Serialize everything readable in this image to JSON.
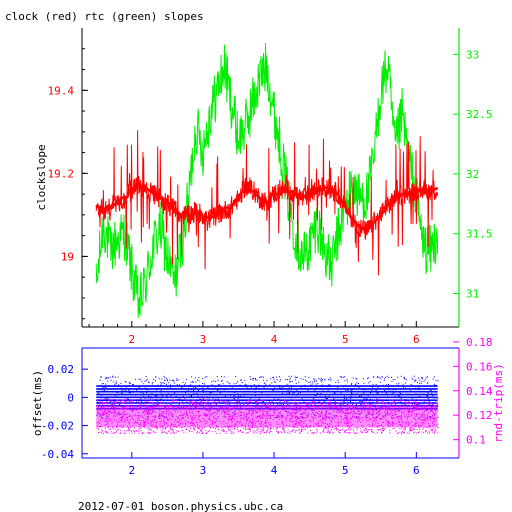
{
  "header": {
    "title": "clock (red) rtc (green) slopes"
  },
  "footer": {
    "text": "2012-07-01 boson.physics.ubc.ca"
  },
  "colors": {
    "axis": "#000000",
    "clock": "#ff0000",
    "rtc": "#00ee00",
    "offset": "#0000ff",
    "rndtrip": "#ff00ff"
  },
  "chart_data": [
    {
      "type": "line",
      "title": "clock (red) rtc (green) slopes",
      "ylabel_left": "clockslope",
      "xlim": [
        1.3,
        6.6
      ],
      "x_ticks": [
        2,
        3,
        4,
        5,
        6
      ],
      "x_tick_labels": [
        "2",
        "3",
        "4",
        "5",
        "6"
      ],
      "ylim_left": [
        18.83,
        19.55
      ],
      "y_left_ticks": [
        19,
        19.2,
        19.4
      ],
      "y_left_tick_labels": [
        "19",
        "19.2",
        "19.4"
      ],
      "ylim_right": [
        30.72,
        33.22
      ],
      "y_right_ticks": [
        31,
        31.5,
        32,
        32.5,
        33
      ],
      "y_right_tick_labels": [
        "31",
        "31.5",
        "32",
        "32.5",
        "33"
      ],
      "series": [
        {
          "name": "clock (red)",
          "axis": "left",
          "x": [
            1.5,
            1.6,
            1.7,
            1.8,
            1.9,
            2.0,
            2.1,
            2.2,
            2.3,
            2.4,
            2.5,
            2.6,
            2.7,
            2.8,
            2.9,
            3.0,
            3.1,
            3.2,
            3.3,
            3.4,
            3.5,
            3.6,
            3.7,
            3.8,
            3.9,
            4.0,
            4.1,
            4.2,
            4.3,
            4.4,
            4.5,
            4.6,
            4.7,
            4.8,
            4.9,
            5.0,
            5.1,
            5.2,
            5.3,
            5.4,
            5.5,
            5.6,
            5.7,
            5.8,
            5.9,
            6.0,
            6.1,
            6.2,
            6.3
          ],
          "y": [
            19.12,
            19.11,
            19.12,
            19.13,
            19.14,
            19.16,
            19.17,
            19.16,
            19.15,
            19.14,
            19.13,
            19.11,
            19.1,
            19.1,
            19.11,
            19.1,
            19.09,
            19.1,
            19.11,
            19.12,
            19.14,
            19.17,
            19.16,
            19.14,
            19.13,
            19.15,
            19.16,
            19.16,
            19.15,
            19.14,
            19.15,
            19.16,
            19.17,
            19.16,
            19.15,
            19.12,
            19.09,
            19.07,
            19.06,
            19.08,
            19.1,
            19.12,
            19.14,
            19.15,
            19.15,
            19.16,
            19.16,
            19.16,
            19.16
          ]
        },
        {
          "name": "rtc (green)",
          "axis": "right",
          "x": [
            1.5,
            1.6,
            1.7,
            1.8,
            1.9,
            2.0,
            2.1,
            2.2,
            2.3,
            2.4,
            2.5,
            2.6,
            2.7,
            2.8,
            2.9,
            3.0,
            3.1,
            3.2,
            3.3,
            3.4,
            3.5,
            3.6,
            3.7,
            3.8,
            3.9,
            4.0,
            4.1,
            4.2,
            4.3,
            4.4,
            4.5,
            4.6,
            4.7,
            4.8,
            4.9,
            5.0,
            5.1,
            5.2,
            5.3,
            5.4,
            5.5,
            5.6,
            5.7,
            5.8,
            5.9,
            6.0,
            6.1,
            6.2,
            6.3
          ],
          "y": [
            31.05,
            31.6,
            31.35,
            31.45,
            31.5,
            31.2,
            30.9,
            31.1,
            31.4,
            31.55,
            31.3,
            31.1,
            31.4,
            31.8,
            32.4,
            32.2,
            32.5,
            32.7,
            32.9,
            32.6,
            32.3,
            32.4,
            32.6,
            32.8,
            32.9,
            32.5,
            32.2,
            31.8,
            31.5,
            31.3,
            31.4,
            31.6,
            31.4,
            31.2,
            31.5,
            31.7,
            31.9,
            31.8,
            31.8,
            32.1,
            32.7,
            32.9,
            32.2,
            32.5,
            32.1,
            31.8,
            31.4,
            31.35,
            31.5
          ]
        }
      ]
    },
    {
      "type": "scatter",
      "xlim": [
        1.3,
        6.6
      ],
      "x_ticks": [
        2,
        3,
        4,
        5,
        6
      ],
      "x_tick_labels": [
        "2",
        "3",
        "4",
        "5",
        "6"
      ],
      "ylabel_left": "offset(ms)",
      "ylabel_right": "rnd-trip(ms)",
      "ylim_left": [
        -0.043,
        0.035
      ],
      "y_left_ticks": [
        -0.04,
        -0.02,
        0,
        0.02
      ],
      "y_left_tick_labels": [
        "-0.04",
        "-0.02",
        "0",
        "0.02"
      ],
      "ylim_right": [
        0.085,
        0.175
      ],
      "y_right_ticks": [
        0.1,
        0.12,
        0.14,
        0.16,
        0.18
      ],
      "y_right_tick_labels": [
        "0.1",
        "0.12",
        "0.14",
        "0.16",
        "0.18"
      ],
      "series": [
        {
          "name": "offset(ms)",
          "axis": "left",
          "x_range": [
            1.5,
            6.3
          ],
          "band": [
            -0.008,
            0.008
          ]
        },
        {
          "name": "rnd-trip(ms)",
          "axis": "right",
          "x_range": [
            1.5,
            6.3
          ],
          "band": [
            0.11,
            0.128
          ]
        }
      ]
    }
  ]
}
